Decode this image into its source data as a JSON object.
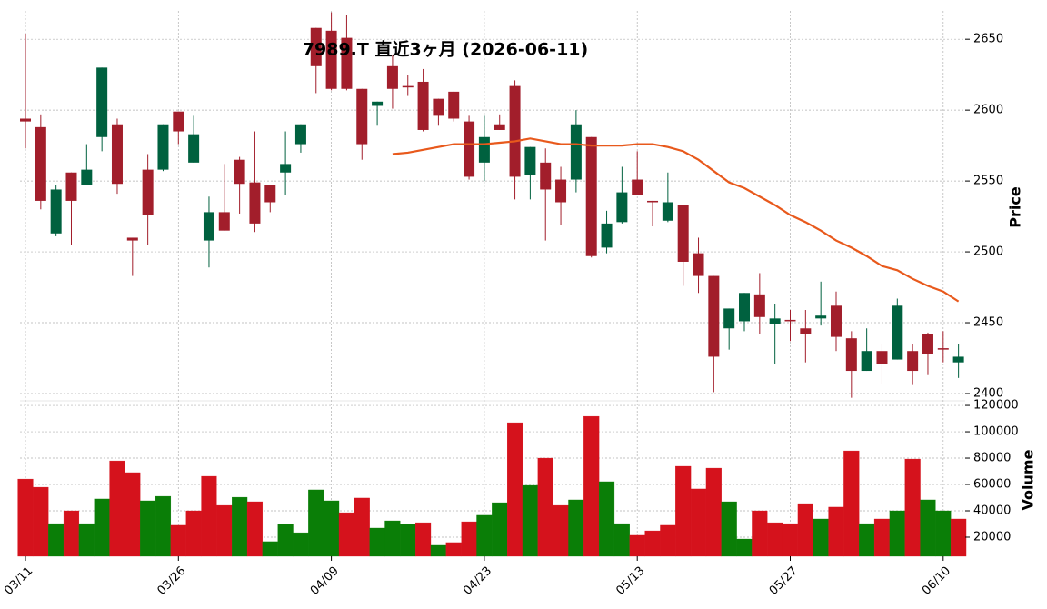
{
  "chart_data": {
    "type": "candlestick",
    "title": "7989.T 直近3ヶ月 (2026-06-11)",
    "ylabel": "Price",
    "categories": [
      "03/11",
      null,
      null,
      null,
      null,
      null,
      null,
      null,
      null,
      null,
      "03/26",
      null,
      null,
      null,
      null,
      null,
      null,
      null,
      null,
      null,
      "04/09",
      null,
      null,
      null,
      null,
      null,
      null,
      null,
      null,
      null,
      "04/23",
      null,
      null,
      null,
      null,
      null,
      null,
      null,
      null,
      null,
      "05/13",
      null,
      null,
      null,
      null,
      null,
      null,
      null,
      null,
      null,
      "05/27",
      null,
      null,
      null,
      null,
      null,
      null,
      null,
      null,
      null,
      "06/10",
      null
    ],
    "open": [
      2594,
      2588,
      2513,
      2556,
      2547,
      2581,
      2590,
      2510,
      2558,
      2558,
      2599,
      2563,
      2508,
      2528,
      2565,
      2549,
      2547,
      2556,
      2576,
      2658,
      2656,
      2651,
      2615,
      2603,
      2631,
      2617,
      2620,
      2608,
      2613,
      2592,
      2563,
      2590,
      2617,
      2554,
      2563,
      2551,
      2551,
      2581,
      2503,
      2521,
      2551,
      2536,
      2522,
      2533,
      2499,
      2483,
      2446,
      2451,
      2470,
      2449,
      2452,
      2446,
      2453,
      2462,
      2439,
      2416,
      2430,
      2424,
      2430,
      2442,
      2432,
      2422
    ],
    "high": [
      2654,
      2597,
      2547,
      2556,
      2576,
      2630,
      2594,
      2510,
      2569,
      2590,
      2599,
      2596,
      2539,
      2562,
      2567,
      2585,
      2547,
      2585,
      2590,
      2658,
      2669,
      2667,
      2615,
      2606,
      2639,
      2625,
      2629,
      2608,
      2613,
      2596,
      2596,
      2597,
      2621,
      2574,
      2573,
      2560,
      2600,
      2581,
      2529,
      2560,
      2571,
      2536,
      2556,
      2533,
      2510,
      2483,
      2460,
      2471,
      2485,
      2463,
      2459,
      2459,
      2479,
      2472,
      2444,
      2446,
      2435,
      2467,
      2435,
      2443,
      2444,
      2435
    ],
    "low": [
      2573,
      2530,
      2511,
      2505,
      2547,
      2571,
      2541,
      2483,
      2505,
      2557,
      2576,
      2563,
      2489,
      2515,
      2527,
      2514,
      2528,
      2540,
      2570,
      2612,
      2614,
      2614,
      2565,
      2589,
      2601,
      2610,
      2585,
      2589,
      2592,
      2551,
      2550,
      2586,
      2537,
      2537,
      2508,
      2519,
      2542,
      2496,
      2499,
      2520,
      2540,
      2518,
      2521,
      2476,
      2471,
      2401,
      2431,
      2444,
      2442,
      2421,
      2437,
      2422,
      2448,
      2430,
      2397,
      2416,
      2407,
      2424,
      2406,
      2413,
      2422,
      2411
    ],
    "close": [
      2592,
      2536,
      2544,
      2536,
      2558,
      2630,
      2548,
      2508,
      2526,
      2590,
      2585,
      2583,
      2528,
      2515,
      2548,
      2520,
      2535,
      2562,
      2590,
      2631,
      2615,
      2615,
      2576,
      2606,
      2615,
      2616,
      2586,
      2596,
      2594,
      2553,
      2581,
      2586,
      2553,
      2574,
      2544,
      2535,
      2590,
      2497,
      2520,
      2542,
      2540,
      2535,
      2535,
      2493,
      2483,
      2426,
      2460,
      2471,
      2454,
      2453,
      2451,
      2442,
      2455,
      2440,
      2416,
      2430,
      2421,
      2462,
      2416,
      2428,
      2431,
      2426
    ],
    "up_color": "#00613f",
    "down_color": "#a21e2b",
    "moving_average": {
      "color": "#e8591c",
      "values": [
        null,
        null,
        null,
        null,
        null,
        null,
        null,
        null,
        null,
        null,
        null,
        null,
        null,
        null,
        null,
        null,
        null,
        null,
        null,
        null,
        null,
        null,
        null,
        null,
        2569,
        2570,
        2572,
        2574,
        2576,
        2576,
        2576,
        2577,
        2578,
        2580,
        2578,
        2576,
        2576,
        2575,
        2575,
        2575,
        2576,
        2576,
        2574,
        2571,
        2565,
        2557,
        2549,
        2545,
        2539,
        2533,
        2526,
        2521,
        2515,
        2508,
        2503,
        2497,
        2490,
        2487,
        2481,
        2476,
        2472,
        2465
      ]
    },
    "ylim": [
      2395.5,
      2670
    ],
    "yticks": [
      2400,
      2450,
      2500,
      2550,
      2600,
      2650
    ],
    "grid": true,
    "volume": {
      "ylabel": "Volume",
      "values": [
        64100,
        57900,
        30300,
        40000,
        30300,
        49000,
        77900,
        69000,
        47600,
        51000,
        29000,
        40000,
        66200,
        44100,
        50300,
        46900,
        16600,
        29700,
        23400,
        55900,
        47600,
        38600,
        49700,
        26900,
        32400,
        29700,
        31000,
        13800,
        15900,
        31700,
        36600,
        46200,
        106900,
        59300,
        80000,
        44100,
        48300,
        111700,
        62100,
        30300,
        21400,
        24800,
        29000,
        73800,
        56600,
        72400,
        46900,
        18600,
        40000,
        31000,
        30300,
        45500,
        33800,
        42800,
        85500,
        30300,
        33800,
        40000,
        79300,
        48300,
        40000,
        33800
      ],
      "colors": [
        "#d5121c",
        "#d5121c",
        "#0a7e07",
        "#d5121c",
        "#0a7e07",
        "#0a7e07",
        "#d5121c",
        "#d5121c",
        "#0a7e07",
        "#0a7e07",
        "#d5121c",
        "#d5121c",
        "#d5121c",
        "#d5121c",
        "#0a7e07",
        "#d5121c",
        "#0a7e07",
        "#0a7e07",
        "#0a7e07",
        "#0a7e07",
        "#0a7e07",
        "#d5121c",
        "#d5121c",
        "#0a7e07",
        "#0a7e07",
        "#0a7e07",
        "#d5121c",
        "#0a7e07",
        "#d5121c",
        "#d5121c",
        "#0a7e07",
        "#0a7e07",
        "#d5121c",
        "#0a7e07",
        "#d5121c",
        "#d5121c",
        "#0a7e07",
        "#d5121c",
        "#0a7e07",
        "#0a7e07",
        "#d5121c",
        "#d5121c",
        "#d5121c",
        "#d5121c",
        "#d5121c",
        "#d5121c",
        "#0a7e07",
        "#0a7e07",
        "#d5121c",
        "#d5121c",
        "#d5121c",
        "#d5121c",
        "#0a7e07",
        "#d5121c",
        "#d5121c",
        "#0a7e07",
        "#d5121c",
        "#0a7e07",
        "#d5121c",
        "#0a7e07",
        "#0a7e07",
        "#d5121c"
      ],
      "ylim": [
        5500,
        122800
      ],
      "yticks": [
        20000,
        40000,
        60000,
        80000,
        100000,
        120000
      ]
    }
  }
}
